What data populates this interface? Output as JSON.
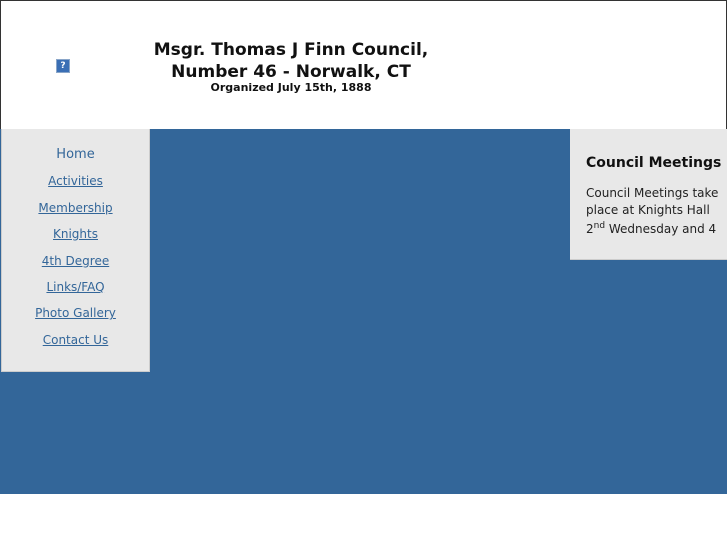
{
  "header": {
    "title_line1": "Msgr. Thomas J Finn Council,",
    "title_line2": "Number 46 - Norwalk, CT",
    "subtitle": "Organized July 15th, 1888",
    "logo_icon": "broken-image-icon"
  },
  "nav": {
    "items": [
      {
        "label": "Home"
      },
      {
        "label": "Activities"
      },
      {
        "label": "Membership"
      },
      {
        "label": "Knights"
      },
      {
        "label": "4th Degree"
      },
      {
        "label": "Links/FAQ"
      },
      {
        "label": "Photo Gallery"
      },
      {
        "label": "Contact Us"
      }
    ]
  },
  "sidebar": {
    "heading": "Council Meetings",
    "text_a": "Council Meetings take place at Knights Hall",
    "ordinal_num": "2",
    "ordinal_sup": "nd",
    "text_b": " Wednesday and 4"
  },
  "colors": {
    "accent": "#336699",
    "panel": "#e8e8e8"
  }
}
